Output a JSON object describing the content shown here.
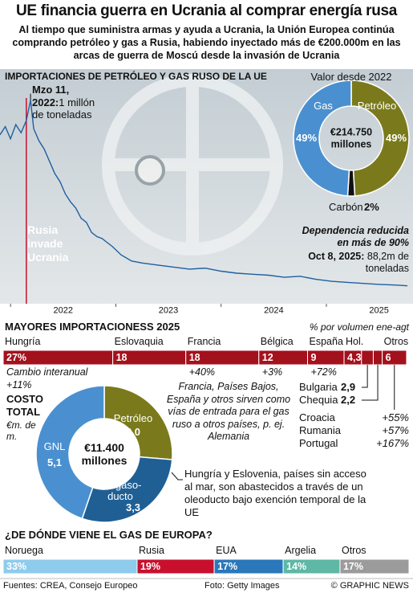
{
  "header": {
    "title": "UE financia guerra en Ucrania al comprar energía rusa",
    "subtitle": "Al tiempo que suministra armas y ayuda a Ucrania, la Unión Europea continúa comprando petróleo y gas a Rusia, habiendo inyectado más de €200.000m en las arcas de guerra de Moscú desde la invasión de Ucrania"
  },
  "chart_data": [
    {
      "type": "line",
      "title": "IMPORTACIONES DE PETRÓLEO Y GAS RUSO DE LA UE",
      "x": [
        2021.9,
        2021.95,
        2022,
        2022.05,
        2022.1,
        2022.15,
        2022.19,
        2022.22,
        2022.27,
        2022.32,
        2022.37,
        2022.42,
        2022.47,
        2022.52,
        2022.57,
        2022.62,
        2022.67,
        2022.72,
        2022.77,
        2022.82,
        2022.87,
        2022.92,
        2022.97,
        2023.05,
        2023.15,
        2023.25,
        2023.4,
        2023.55,
        2023.7,
        2023.85,
        2024,
        2024.15,
        2024.3,
        2024.45,
        2024.6,
        2024.75,
        2024.9,
        2025.05,
        2025.2,
        2025.35,
        2025.5,
        2025.65,
        2025.77
      ],
      "values": [
        830,
        870,
        810,
        880,
        840,
        900,
        1000,
        860,
        800,
        760,
        700,
        640,
        600,
        540,
        500,
        470,
        420,
        400,
        350,
        330,
        320,
        300,
        280,
        240,
        210,
        200,
        190,
        180,
        170,
        175,
        160,
        150,
        145,
        140,
        130,
        135,
        120,
        110,
        105,
        100,
        95,
        92,
        88.2
      ],
      "color": "#1f5fa0",
      "xlim": [
        2021.9,
        2025.8
      ],
      "ylim": [
        0,
        1050
      ],
      "xticks": [
        2022,
        2023,
        2024,
        2025
      ],
      "peak": {
        "date": "Mzo 11, 2022:",
        "text": "1 millón de toneladas"
      },
      "event": {
        "text": "Rusia invade Ucrania",
        "x": 2022.15
      },
      "note": "Dependencia reducida en más de 90%",
      "end": {
        "date": "Oct 8, 2025:",
        "text": "88,2m de toneladas"
      }
    },
    {
      "type": "donut",
      "title": "Valor desde 2022",
      "center_label": "€214.750 millones",
      "categories": [
        "Petróleo",
        "Carbón",
        "Gas"
      ],
      "values": [
        49,
        2,
        49
      ],
      "value_labels": [
        "49%",
        "2%",
        "49%"
      ],
      "colors": [
        "#7a7a1c",
        "#111111",
        "#4a90d0"
      ]
    },
    {
      "type": "stacked_bar",
      "title": "MAYORES IMPORTACIONESS 2025",
      "subtitle": "% por volumen ene-agt",
      "categories": [
        "Hungría",
        "Eslovaquia",
        "Francia",
        "Bélgica",
        "España",
        "Hol.",
        "Bulgaria",
        "Chequia",
        "Otros"
      ],
      "values": [
        27,
        18,
        18,
        12,
        9,
        4.3,
        2.9,
        2.2,
        6
      ],
      "value_labels": [
        "27%",
        "18",
        "18",
        "12",
        "9",
        "4,3",
        "2,9",
        "2,2",
        "6"
      ],
      "color": "#a3111c",
      "xlim": [
        0,
        100
      ],
      "change_title": "Cambio interanual",
      "changes": [
        {
          "category": "Hungría",
          "value": "+11%"
        },
        {
          "category": "Francia",
          "value": "+40%"
        },
        {
          "category": "Bélgica",
          "value": "+3%"
        },
        {
          "category": "España",
          "value": "+72%"
        }
      ],
      "others": [
        {
          "name": "Croacia",
          "value": "+55%"
        },
        {
          "name": "Rumania",
          "value": "+57%"
        },
        {
          "name": "Portugal",
          "value": "+167%"
        }
      ],
      "note": "Francia, Países Bajos, España y otros sirven como vías de entrada para el gas ruso a otros países, p. ej. Alemania"
    },
    {
      "type": "donut",
      "title": "COSTO TOTAL",
      "subtitle": "€m. de m.",
      "center_label": "€11.400 millones",
      "categories": [
        "Petróleo",
        "De gaso-ducto",
        "GNL"
      ],
      "values": [
        3.0,
        3.3,
        5.1
      ],
      "value_labels": [
        "3,0",
        "3,3",
        "5,1"
      ],
      "colors": [
        "#7a7a1c",
        "#1f5f94",
        "#4a90d0"
      ],
      "note": "Hungría y Eslovenia, países sin acceso al mar, son abastecidos a través de un oleoducto bajo exención temporal de la UE"
    },
    {
      "type": "stacked_bar",
      "title": "¿DE DÓNDE VIENE EL GAS DE EUROPA?",
      "categories": [
        "Noruega",
        "Rusia",
        "EUA",
        "Argelia",
        "Otros"
      ],
      "values": [
        33,
        19,
        17,
        14,
        17
      ],
      "value_labels": [
        "33%",
        "19%",
        "17%",
        "14%",
        "17%"
      ],
      "colors": [
        "#8fcbed",
        "#c8102e",
        "#2a78b9",
        "#5fb7a5",
        "#9b9b9b"
      ],
      "xlim": [
        0,
        100
      ]
    }
  ],
  "footer": {
    "sources": "Fuentes: CREA, Consejo Europeo",
    "photo": "Foto: Getty Images",
    "credit": "© GRAPHIC NEWS"
  }
}
